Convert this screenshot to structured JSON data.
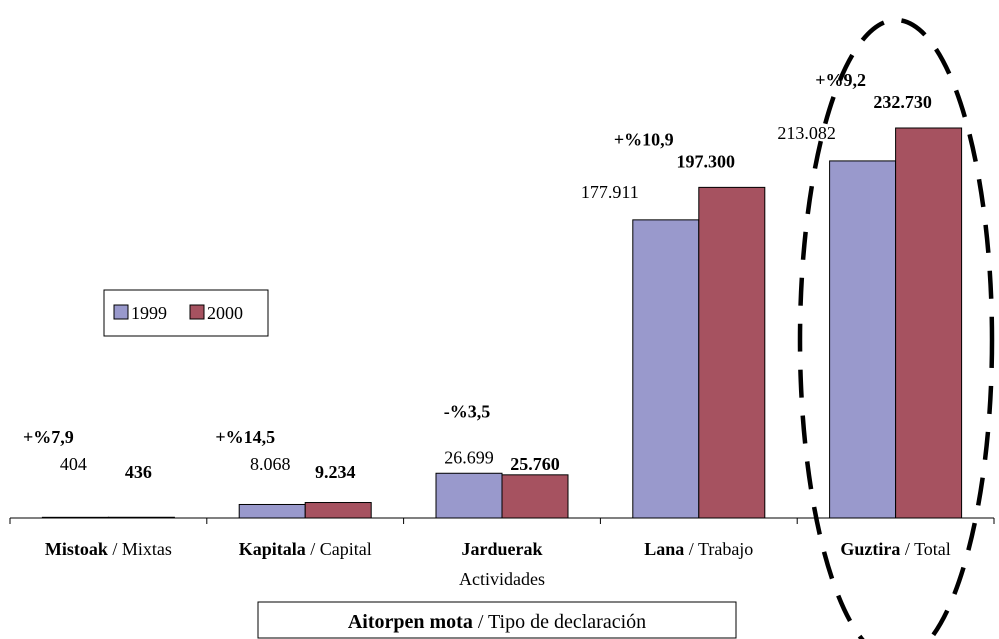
{
  "chart_data": {
    "type": "bar",
    "categories": [
      {
        "name_bold": "Mistoak",
        "sep": " / ",
        "name": "Mixtas",
        "line2": ""
      },
      {
        "name_bold": "Kapitala",
        "sep": " / ",
        "name": "Capital",
        "line2": ""
      },
      {
        "name_bold": "Jarduerak",
        "sep": "",
        "name": "",
        "line2": "Actividades"
      },
      {
        "name_bold": "Lana",
        "sep": " / ",
        "name": "Trabajo",
        "line2": ""
      },
      {
        "name_bold": "Guztira",
        "sep": "  / ",
        "name": "Total",
        "line2": ""
      }
    ],
    "series": [
      {
        "name": "1999",
        "color": "#9999CC",
        "values": [
          404,
          8068,
          26699,
          177911,
          213082
        ],
        "labels": [
          "404",
          "8.068",
          "26.699",
          "177.911",
          "213.082"
        ]
      },
      {
        "name": "2000",
        "color": "#A65260",
        "values": [
          436,
          9234,
          25760,
          197300,
          232730
        ],
        "labels": [
          "436",
          "9.234",
          "25.760",
          "197.300",
          "232.730"
        ]
      }
    ],
    "changes": [
      "+%7,9",
      "+%14,5",
      "-%3,5",
      "+%10,9",
      "+%9,2"
    ],
    "xlabel_bold": "Aitorpen mota",
    "xlabel_sep": " / ",
    "xlabel": "Tipo de declaración",
    "ylim": [
      0,
      232730
    ],
    "legend_position": "middle-left",
    "highlight": "Guztira"
  }
}
